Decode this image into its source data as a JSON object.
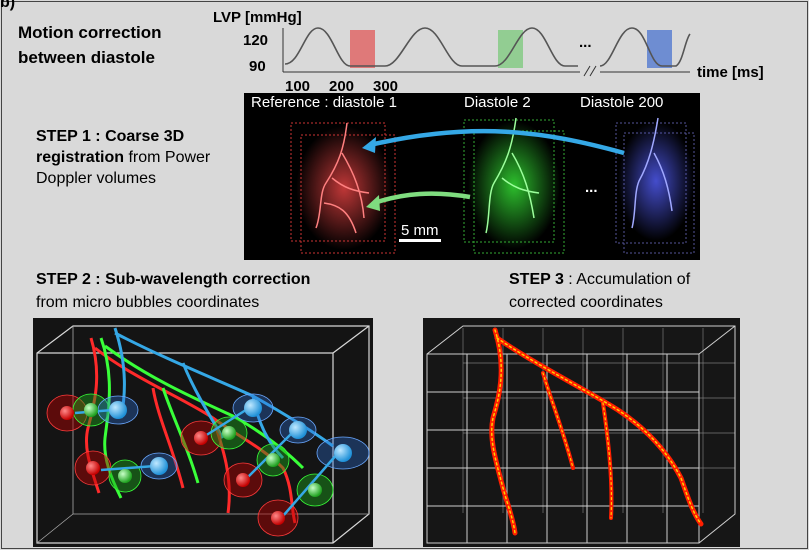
{
  "corner_label": "b)",
  "header": {
    "title_line1": "Motion correction",
    "title_line2": "between diastole"
  },
  "lvp_plot": {
    "ylabel": "LVP [mmHg]",
    "yticks": [
      "120",
      "90"
    ],
    "xticks": [
      "100",
      "200",
      "300"
    ],
    "xlabel": "time [ms]",
    "ellipsis": "...",
    "window_colors": [
      "#e06060",
      "#7fc97f",
      "#5b7fd0"
    ]
  },
  "step1": {
    "title_bold": "STEP 1 : Coarse 3D registration",
    "title_rest": " from Power Doppler volumes",
    "labels": [
      "Reference : diastole 1",
      "Diastole 2",
      "Diastole 200"
    ],
    "ellipsis": "...",
    "scale_bar": "5 mm",
    "volume_colors": [
      "#ff3b3b",
      "#39ff39",
      "#4b5bff"
    ],
    "arrow_colors": [
      "#35a8e6",
      "#7fdc7f"
    ]
  },
  "step2": {
    "title_bold": "STEP 2 : Sub-wavelength correction",
    "title_rest": "from micro bubbles coordinates"
  },
  "step3": {
    "title_bold": "STEP 3",
    "title_rest1": " : Accumulation of",
    "title_rest2": "corrected coordinates"
  }
}
